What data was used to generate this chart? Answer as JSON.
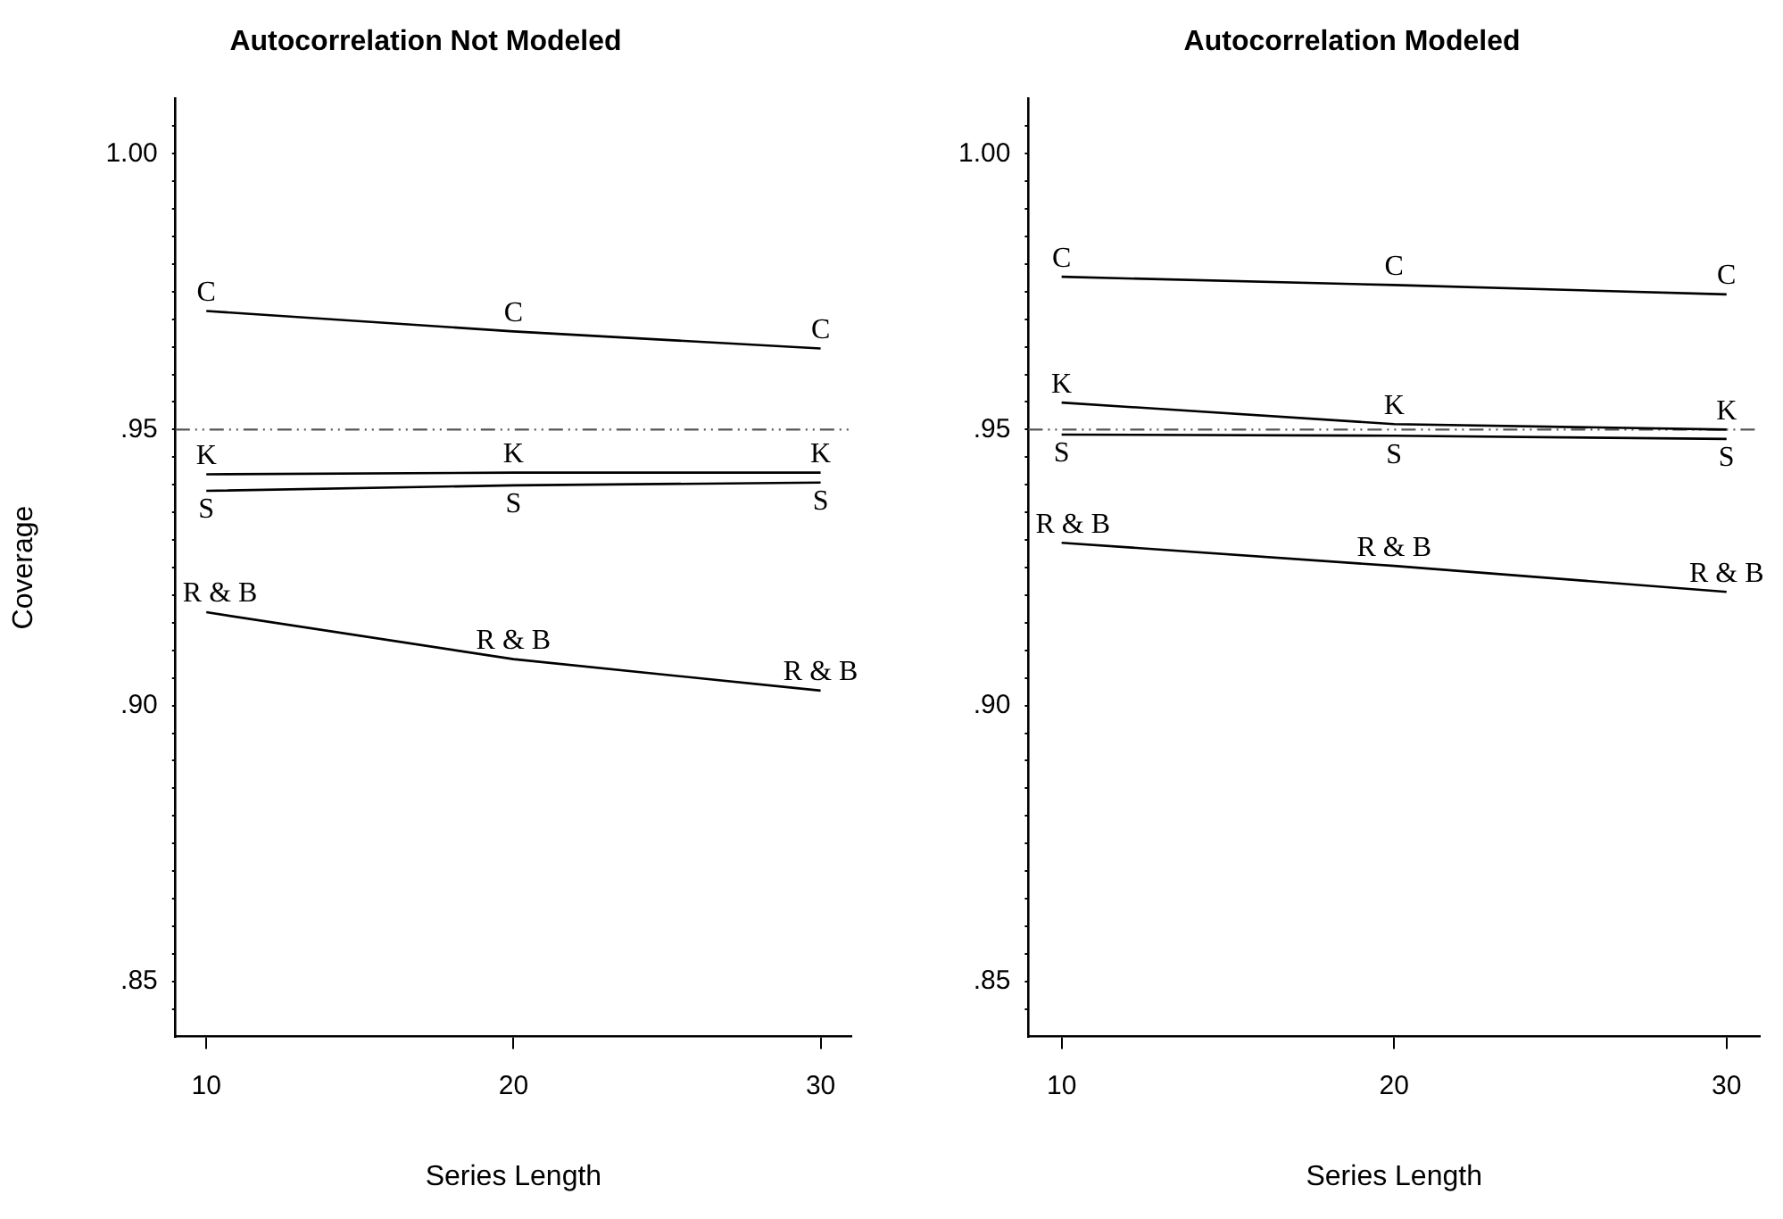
{
  "chart_data": [
    {
      "type": "line",
      "title": "Autocorrelation Not Modeled",
      "xlabel": "Series Length",
      "ylabel": "Coverage",
      "x": [
        10,
        20,
        30
      ],
      "marker": "none",
      "series": [
        {
          "name": "C",
          "color": "#000000",
          "values": [
            0.9715,
            0.9678,
            0.9647
          ]
        },
        {
          "name": "K",
          "color": "#000000",
          "values": [
            0.9419,
            0.9422,
            0.9422
          ]
        },
        {
          "name": "S",
          "color": "#000000",
          "values": [
            0.9389,
            0.9399,
            0.9404
          ]
        },
        {
          "name": "R & B",
          "color": "#000000",
          "values": [
            0.9169,
            0.9084,
            0.9027
          ]
        }
      ],
      "xlim": [
        9,
        31
      ],
      "xticks": [
        10,
        20,
        30
      ],
      "ylim": [
        0.84,
        1.01
      ],
      "yticks": [
        {
          "value": 0.845,
          "label": null
        },
        {
          "value": 0.85,
          "label": ".85"
        },
        {
          "value": 0.855,
          "label": null
        },
        {
          "value": 0.86,
          "label": null
        },
        {
          "value": 0.865,
          "label": null
        },
        {
          "value": 0.87,
          "label": null
        },
        {
          "value": 0.875,
          "label": null
        },
        {
          "value": 0.88,
          "label": null
        },
        {
          "value": 0.885,
          "label": null
        },
        {
          "value": 0.89,
          "label": null
        },
        {
          "value": 0.895,
          "label": null
        },
        {
          "value": 0.9,
          "label": ".90"
        },
        {
          "value": 0.905,
          "label": null
        },
        {
          "value": 0.91,
          "label": null
        },
        {
          "value": 0.915,
          "label": null
        },
        {
          "value": 0.92,
          "label": null
        },
        {
          "value": 0.925,
          "label": null
        },
        {
          "value": 0.93,
          "label": null
        },
        {
          "value": 0.935,
          "label": null
        },
        {
          "value": 0.94,
          "label": null
        },
        {
          "value": 0.945,
          "label": null
        },
        {
          "value": 0.95,
          "label": ".95"
        },
        {
          "value": 0.955,
          "label": null
        },
        {
          "value": 0.96,
          "label": null
        },
        {
          "value": 0.965,
          "label": null
        },
        {
          "value": 0.97,
          "label": null
        },
        {
          "value": 0.975,
          "label": null
        },
        {
          "value": 0.98,
          "label": null
        },
        {
          "value": 0.985,
          "label": null
        },
        {
          "value": 0.99,
          "label": null
        },
        {
          "value": 0.995,
          "label": null
        },
        {
          "value": 1.0,
          "label": "1.00"
        },
        {
          "value": 1.005,
          "label": null
        }
      ],
      "ref_lines": [
        {
          "axis": "y",
          "value": 0.95,
          "color": "#555555",
          "line_style": "dashed"
        }
      ]
    },
    {
      "type": "line",
      "title": "Autocorrelation Modeled",
      "xlabel": "Series Length",
      "x": [
        10,
        20,
        30
      ],
      "marker": "none",
      "series": [
        {
          "name": "C",
          "color": "#000000",
          "values": [
            0.9777,
            0.9762,
            0.9745
          ]
        },
        {
          "name": "K",
          "color": "#000000",
          "values": [
            0.9549,
            0.951,
            0.95
          ]
        },
        {
          "name": "S",
          "color": "#000000",
          "values": [
            0.9491,
            0.9489,
            0.9483
          ]
        },
        {
          "name": "R & B",
          "color": "#000000",
          "values": [
            0.9295,
            0.9253,
            0.9206
          ]
        }
      ],
      "xlim": [
        9,
        31
      ],
      "xticks": [
        10,
        20,
        30
      ],
      "ylim": [
        0.84,
        1.01
      ],
      "yticks": [
        {
          "value": 0.845,
          "label": null
        },
        {
          "value": 0.85,
          "label": ".85"
        },
        {
          "value": 0.855,
          "label": null
        },
        {
          "value": 0.86,
          "label": null
        },
        {
          "value": 0.865,
          "label": null
        },
        {
          "value": 0.87,
          "label": null
        },
        {
          "value": 0.875,
          "label": null
        },
        {
          "value": 0.88,
          "label": null
        },
        {
          "value": 0.885,
          "label": null
        },
        {
          "value": 0.89,
          "label": null
        },
        {
          "value": 0.895,
          "label": null
        },
        {
          "value": 0.9,
          "label": ".90"
        },
        {
          "value": 0.905,
          "label": null
        },
        {
          "value": 0.91,
          "label": null
        },
        {
          "value": 0.915,
          "label": null
        },
        {
          "value": 0.92,
          "label": null
        },
        {
          "value": 0.925,
          "label": null
        },
        {
          "value": 0.93,
          "label": null
        },
        {
          "value": 0.935,
          "label": null
        },
        {
          "value": 0.94,
          "label": null
        },
        {
          "value": 0.945,
          "label": null
        },
        {
          "value": 0.95,
          "label": ".95"
        },
        {
          "value": 0.955,
          "label": null
        },
        {
          "value": 0.96,
          "label": null
        },
        {
          "value": 0.965,
          "label": null
        },
        {
          "value": 0.97,
          "label": null
        },
        {
          "value": 0.975,
          "label": null
        },
        {
          "value": 0.98,
          "label": null
        },
        {
          "value": 0.985,
          "label": null
        },
        {
          "value": 0.99,
          "label": null
        },
        {
          "value": 0.995,
          "label": null
        },
        {
          "value": 1.0,
          "label": "1.00"
        },
        {
          "value": 1.005,
          "label": null
        }
      ],
      "ref_lines": [
        {
          "axis": "y",
          "value": 0.95,
          "color": "#555555",
          "line_style": "dashed"
        }
      ]
    }
  ]
}
